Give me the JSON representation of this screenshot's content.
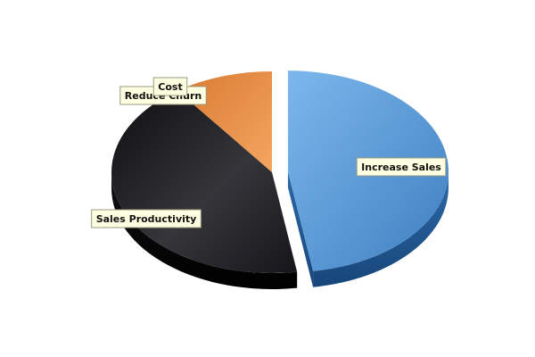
{
  "chart_data": {
    "type": "pie",
    "style": "3d-exploded",
    "title": "",
    "legend": "none",
    "slices": [
      {
        "label": "Increase Sales",
        "value": 47.5,
        "color": "#4f8fd0",
        "exploded": true
      },
      {
        "label": "Sales Productivity",
        "value": 42.5,
        "color": "#1e1e22",
        "exploded": false
      },
      {
        "label": "Reduce Churn",
        "value": 10,
        "color": "#ec9148",
        "exploded": false
      },
      {
        "label": "Cost",
        "value": 0,
        "color": "#d9d9d9",
        "exploded": false
      }
    ]
  }
}
